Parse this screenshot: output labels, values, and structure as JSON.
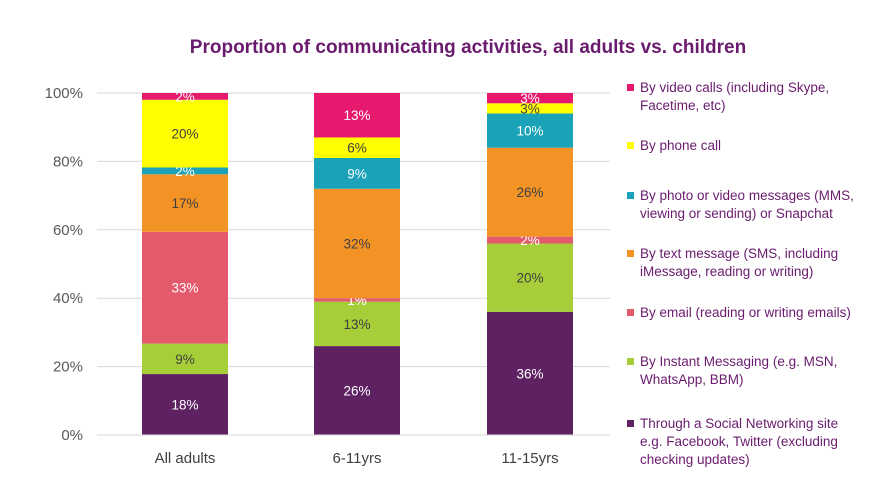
{
  "chart_data": {
    "type": "bar",
    "stacked": true,
    "title": "Proportion of communicating activities, all adults vs. children",
    "xlabel": "",
    "ylabel": "",
    "ylim": [
      0,
      100
    ],
    "yticks": [
      "0%",
      "20%",
      "40%",
      "60%",
      "80%",
      "100%"
    ],
    "categories": [
      "All adults",
      "6-11yrs",
      "11-15yrs"
    ],
    "legend_position": "right",
    "series": [
      {
        "name": "Through a Social Networking site e.g. Facebook, Twitter (excluding checking updates)",
        "legend_lines": [
          "Through a Social Networking site",
          "e.g. Facebook, Twitter (excluding",
          "checking updates)"
        ],
        "color": "#5e2262",
        "label_color": "#ffffff",
        "values": [
          18,
          26,
          36
        ],
        "labels": [
          "18%",
          "26%",
          "36%"
        ]
      },
      {
        "name": "By Instant Messaging (e.g. MSN, WhatsApp, BBM)",
        "legend_lines": [
          "By Instant Messaging (e.g. MSN,",
          "WhatsApp, BBM)"
        ],
        "color": "#a6ce39",
        "label_color": "#404040",
        "values": [
          9,
          13,
          20
        ],
        "labels": [
          "9%",
          "13%",
          "20%"
        ]
      },
      {
        "name": "By email (reading or writing emails)",
        "legend_lines": [
          "By email (reading or writing emails)"
        ],
        "color": "#e35a6c",
        "label_color": "#ffffff",
        "values": [
          33,
          1,
          2
        ],
        "labels": [
          "33%",
          "1%",
          "2%"
        ]
      },
      {
        "name": "By text message (SMS, including iMessage, reading or writing)",
        "legend_lines": [
          "By text message (SMS, including",
          "iMessage, reading or writing)"
        ],
        "color": "#f39325",
        "label_color": "#404040",
        "values": [
          17,
          32,
          26
        ],
        "labels": [
          "17%",
          "32%",
          "26%"
        ]
      },
      {
        "name": "By photo or video messages (MMS, viewing or sending) or Snapchat",
        "legend_lines": [
          "By photo or video messages (MMS,",
          "viewing or sending) or Snapchat"
        ],
        "color": "#1aa2b8",
        "label_color": "#ffffff",
        "values": [
          2,
          9,
          10
        ],
        "labels": [
          "2%",
          "9%",
          "10%"
        ]
      },
      {
        "name": "By phone call",
        "legend_lines": [
          "By phone call"
        ],
        "color": "#ffff00",
        "label_color": "#404040",
        "values": [
          20,
          6,
          3
        ],
        "labels": [
          "20%",
          "6%",
          "3%"
        ]
      },
      {
        "name": "By video calls (including Skype, Facetime, etc)",
        "legend_lines": [
          "By video calls (including Skype,",
          "Facetime, etc)"
        ],
        "color": "#e6196e",
        "label_color": "#ffffff",
        "values": [
          2,
          13,
          3
        ],
        "labels": [
          "2%",
          "13%",
          "3%"
        ]
      }
    ]
  }
}
